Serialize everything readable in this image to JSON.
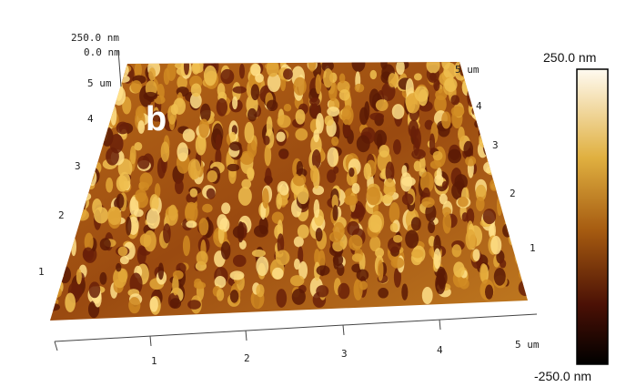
{
  "panel_label": "b",
  "z_axis": {
    "labels": [
      "250.0 nm",
      "0.0 nm"
    ]
  },
  "front_axis": {
    "labels": [
      "1",
      "2",
      "3",
      "4",
      "5 um"
    ]
  },
  "left_axis": {
    "labels": [
      "1",
      "2",
      "3",
      "4",
      "5 um"
    ]
  },
  "right_axis": {
    "labels": [
      "1",
      "2",
      "3",
      "4",
      "5 um"
    ]
  },
  "colorbar": {
    "max_label": "250.0 nm",
    "min_label": "-250.0 nm"
  }
}
